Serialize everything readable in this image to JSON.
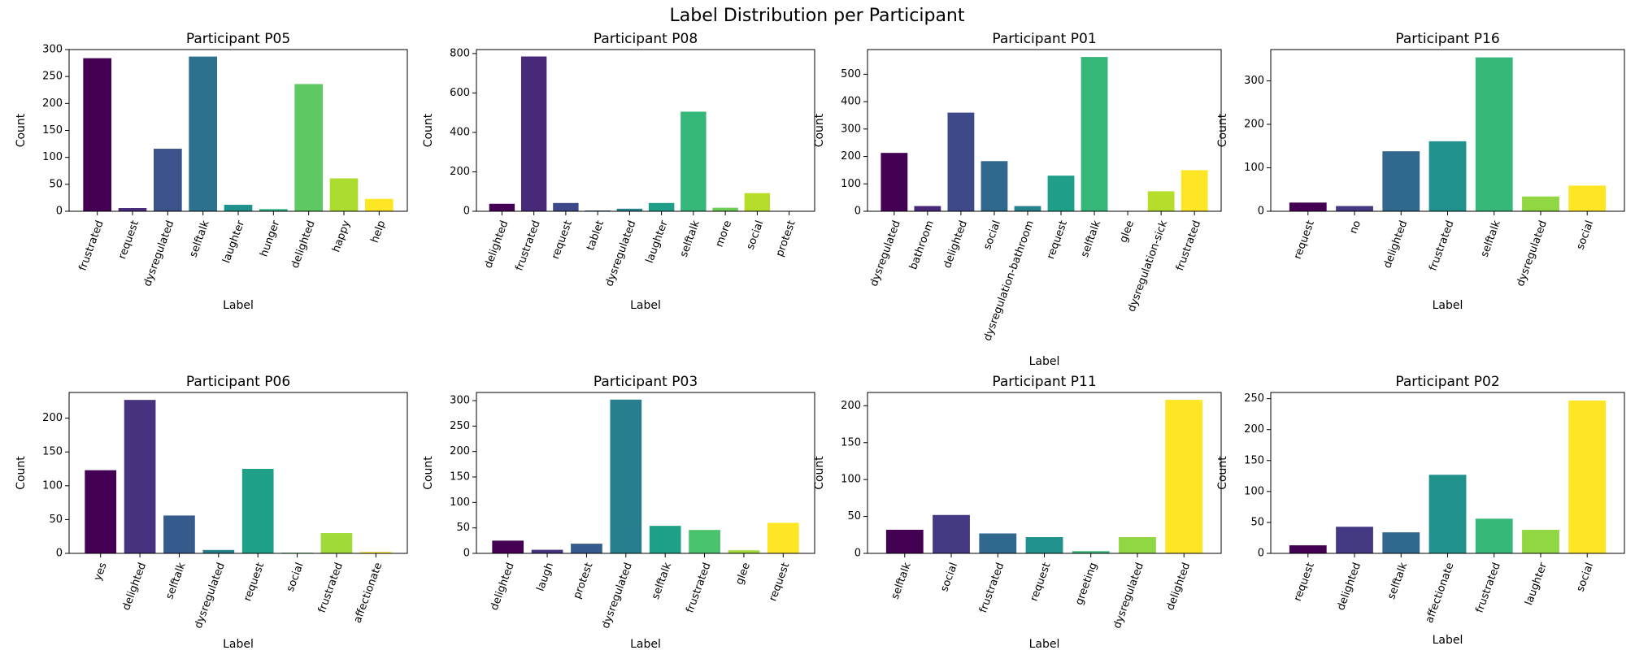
{
  "figure_title": "Label Distribution per Participant",
  "chart_data": [
    {
      "type": "bar",
      "title": "Participant P05",
      "xlabel": "Label",
      "ylabel": "Count",
      "ylim": [
        0,
        300
      ],
      "yticks": [
        0,
        50,
        100,
        150,
        200,
        250,
        300
      ],
      "categories": [
        "frustrated",
        "request",
        "dysregulated",
        "selftalk",
        "laughter",
        "hunger",
        "delighted",
        "happy",
        "help"
      ],
      "values": [
        284,
        6,
        116,
        287,
        12,
        4,
        236,
        61,
        23
      ],
      "colors": [
        "#440154",
        "#472d7b",
        "#3b528b",
        "#2c728e",
        "#21918c",
        "#28ae80",
        "#5ec962",
        "#addc30",
        "#fde725"
      ]
    },
    {
      "type": "bar",
      "title": "Participant P08",
      "xlabel": "Label",
      "ylabel": "Count",
      "ylim": [
        0,
        820
      ],
      "yticks": [
        0,
        200,
        400,
        600,
        800
      ],
      "categories": [
        "delighted",
        "frustrated",
        "request",
        "tablet",
        "dysregulated",
        "laughter",
        "selftalk",
        "more",
        "social",
        "protest"
      ],
      "values": [
        38,
        785,
        42,
        4,
        13,
        42,
        505,
        18,
        92,
        2
      ],
      "colors": [
        "#440154",
        "#482878",
        "#3e4989",
        "#31688e",
        "#26828e",
        "#1f9e89",
        "#35b779",
        "#6ece58",
        "#b5de2b",
        "#fde725"
      ]
    },
    {
      "type": "bar",
      "title": "Participant P01",
      "xlabel": "Label",
      "ylabel": "Count",
      "ylim": [
        0,
        590
      ],
      "yticks": [
        0,
        100,
        200,
        300,
        400,
        500
      ],
      "categories": [
        "dysregulated",
        "bathroom",
        "delighted",
        "social",
        "dysregulation-bathroom",
        "request",
        "selftalk",
        "glee",
        "dysregulation-sick",
        "frustrated"
      ],
      "values": [
        213,
        19,
        360,
        183,
        19,
        130,
        563,
        0,
        73,
        150
      ],
      "colors": [
        "#440154",
        "#482878",
        "#3e4989",
        "#31688e",
        "#26828e",
        "#1f9e89",
        "#35b779",
        "#6ece58",
        "#b5de2b",
        "#fde725"
      ]
    },
    {
      "type": "bar",
      "title": "Participant P16",
      "xlabel": "Label",
      "ylabel": "Count",
      "ylim": [
        0,
        372
      ],
      "yticks": [
        0,
        100,
        200,
        300
      ],
      "categories": [
        "request",
        "no",
        "delighted",
        "frustrated",
        "selftalk",
        "dysregulated",
        "social"
      ],
      "values": [
        20,
        12,
        138,
        161,
        354,
        34,
        59
      ],
      "colors": [
        "#440154",
        "#443983",
        "#31688e",
        "#21918c",
        "#35b779",
        "#90d743",
        "#fde725"
      ]
    },
    {
      "type": "bar",
      "title": "Participant P06",
      "xlabel": "Label",
      "ylabel": "Count",
      "ylim": [
        0,
        238
      ],
      "yticks": [
        0,
        50,
        100,
        150,
        200
      ],
      "categories": [
        "yes",
        "delighted",
        "selftalk",
        "dysregulated",
        "request",
        "social",
        "frustrated",
        "affectionate"
      ],
      "values": [
        123,
        227,
        56,
        5,
        125,
        1,
        30,
        2
      ],
      "colors": [
        "#440154",
        "#46327e",
        "#365c8d",
        "#277f8e",
        "#1fa187",
        "#4ac16d",
        "#a0da39",
        "#fde725"
      ]
    },
    {
      "type": "bar",
      "title": "Participant P03",
      "xlabel": "Label",
      "ylabel": "Count",
      "ylim": [
        0,
        316
      ],
      "yticks": [
        0,
        50,
        100,
        150,
        200,
        250,
        300
      ],
      "categories": [
        "delighted",
        "laugh",
        "protest",
        "dysregulated",
        "selftalk",
        "frustrated",
        "glee",
        "request"
      ],
      "values": [
        25,
        7,
        19,
        302,
        54,
        46,
        6,
        60
      ],
      "colors": [
        "#440154",
        "#46327e",
        "#365c8d",
        "#277f8e",
        "#1fa187",
        "#4ac16d",
        "#a0da39",
        "#fde725"
      ]
    },
    {
      "type": "bar",
      "title": "Participant P11",
      "xlabel": "Label",
      "ylabel": "Count",
      "ylim": [
        0,
        218
      ],
      "yticks": [
        0,
        50,
        100,
        150,
        200
      ],
      "categories": [
        "selftalk",
        "social",
        "frustrated",
        "request",
        "greeting",
        "dysregulated",
        "delighted"
      ],
      "values": [
        32,
        52,
        27,
        22,
        3,
        22,
        208
      ],
      "colors": [
        "#440154",
        "#443983",
        "#31688e",
        "#21918c",
        "#35b779",
        "#90d743",
        "#fde725"
      ]
    },
    {
      "type": "bar",
      "title": "Participant P02",
      "xlabel": "Label",
      "ylabel": "Count",
      "ylim": [
        0,
        260
      ],
      "yticks": [
        0,
        50,
        100,
        150,
        200,
        250
      ],
      "categories": [
        "request",
        "delighted",
        "selftalk",
        "affectionate",
        "frustrated",
        "laughter",
        "social"
      ],
      "values": [
        13,
        43,
        34,
        127,
        56,
        38,
        247
      ],
      "colors": [
        "#440154",
        "#443983",
        "#31688e",
        "#21918c",
        "#35b779",
        "#90d743",
        "#fde725"
      ]
    }
  ]
}
